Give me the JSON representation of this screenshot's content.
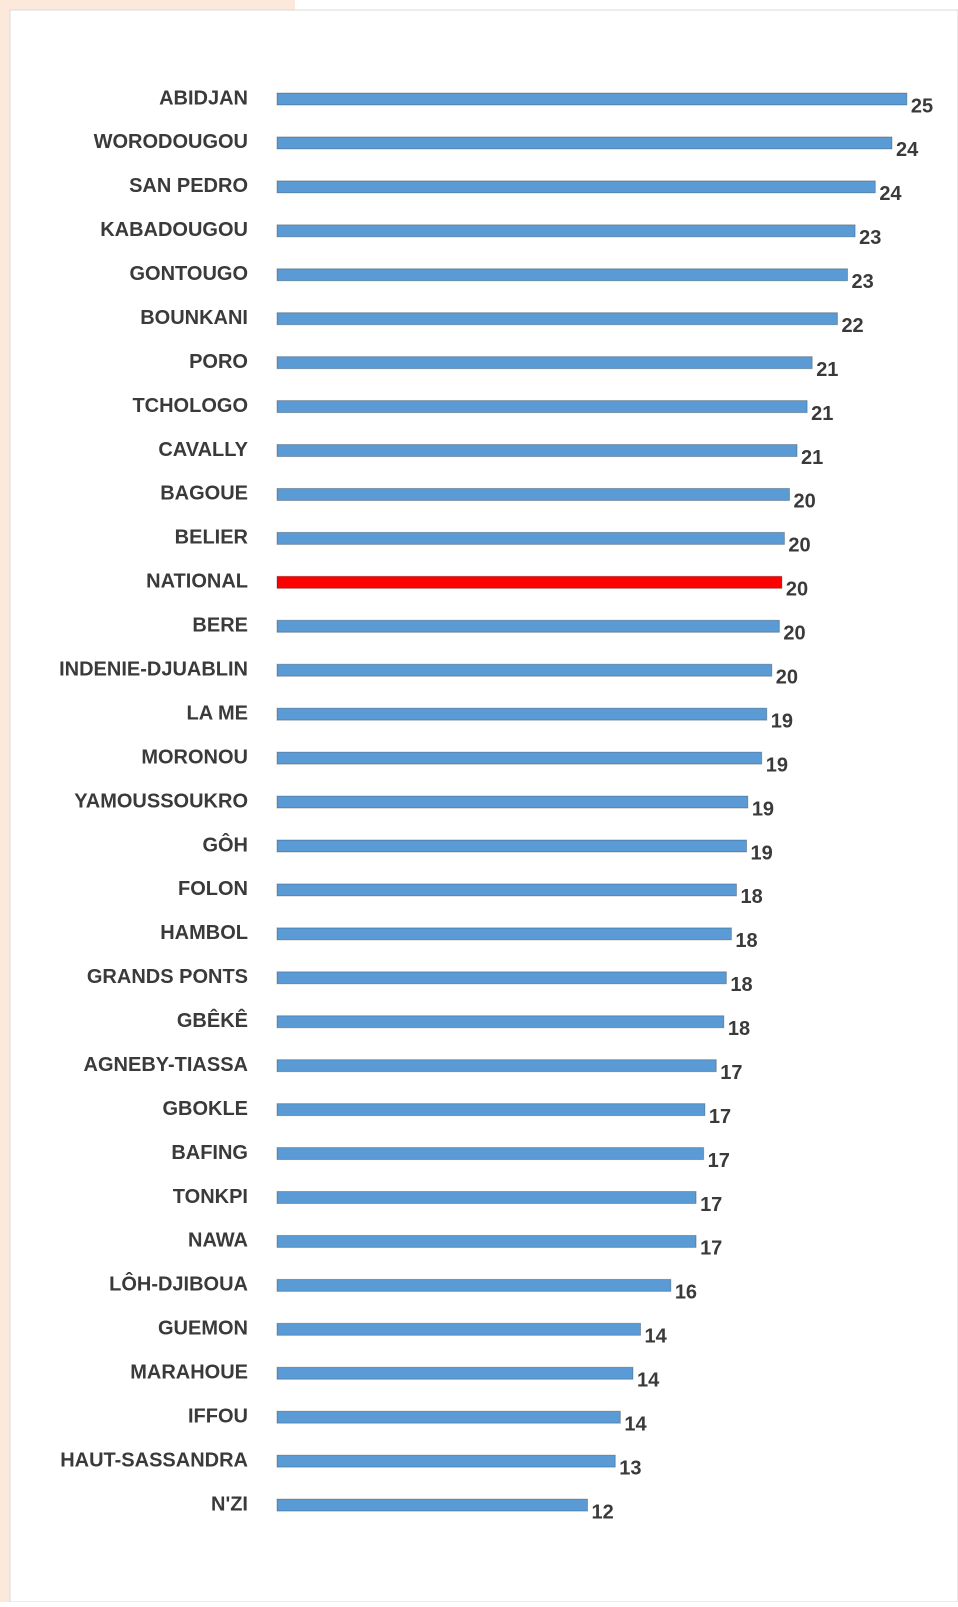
{
  "chart_data": {
    "type": "bar",
    "orientation": "horizontal",
    "categories": [
      "ABIDJAN",
      "WORODOUGOU",
      "SAN PEDRO",
      "KABADOUGOU",
      "GONTOUGO",
      "BOUNKANI",
      "PORO",
      "TCHOLOGO",
      "CAVALLY",
      "BAGOUE",
      "BELIER",
      "NATIONAL",
      "BERE",
      "INDENIE-DJUABLIN",
      "LA ME",
      "MORONOU",
      "YAMOUSSOUKRO",
      "GÔH",
      "FOLON",
      "HAMBOL",
      "GRANDS PONTS",
      "GBÊKÊ",
      "AGNEBY-TIASSA",
      "GBOKLE",
      "BAFING",
      "TONKPI",
      "NAWA",
      "LÔH-DJIBOUA",
      "GUEMON",
      "MARAHOUE",
      "IFFOU",
      "HAUT-SASSANDRA",
      "N'ZI"
    ],
    "values": [
      24.95,
      24.36,
      23.7,
      22.9,
      22.6,
      22.2,
      21.2,
      21.0,
      20.6,
      20.3,
      20.1,
      20.0,
      19.9,
      19.6,
      19.4,
      19.2,
      18.65,
      18.6,
      18.2,
      18.0,
      17.8,
      17.7,
      17.4,
      16.95,
      16.9,
      16.6,
      16.6,
      15.6,
      14.4,
      14.1,
      13.6,
      13.4,
      12.3
    ],
    "value_labels": [
      "25",
      "24",
      "24",
      "23",
      "23",
      "22",
      "21",
      "21",
      "21",
      "20",
      "20",
      "20",
      "20",
      "20",
      "19",
      "19",
      "19",
      "19",
      "18",
      "18",
      "18",
      "18",
      "17",
      "17",
      "17",
      "17",
      "17",
      "16",
      "14",
      "14",
      "14",
      "13",
      "12"
    ],
    "colors": [
      "#5b9bd5",
      "#5b9bd5",
      "#5b9bd5",
      "#5b9bd5",
      "#5b9bd5",
      "#5b9bd5",
      "#5b9bd5",
      "#5b9bd5",
      "#5b9bd5",
      "#5b9bd5",
      "#5b9bd5",
      "#ff0000",
      "#5b9bd5",
      "#5b9bd5",
      "#5b9bd5",
      "#5b9bd5",
      "#5b9bd5",
      "#5b9bd5",
      "#5b9bd5",
      "#5b9bd5",
      "#5b9bd5",
      "#5b9bd5",
      "#5b9bd5",
      "#5b9bd5",
      "#5b9bd5",
      "#5b9bd5",
      "#5b9bd5",
      "#5b9bd5",
      "#5b9bd5",
      "#5b9bd5",
      "#5b9bd5",
      "#5b9bd5",
      "#5b9bd5"
    ],
    "xlim": [
      0,
      26.5
    ]
  }
}
